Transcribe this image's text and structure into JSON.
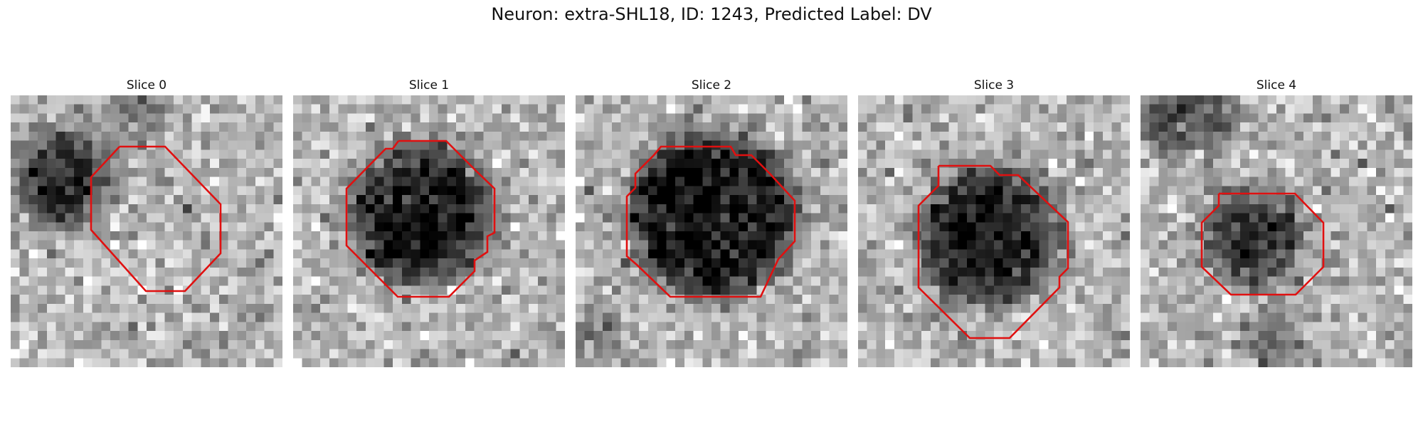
{
  "figure": {
    "title": "Neuron: extra-SHL18, ID: 1243, Predicted Label: DV"
  },
  "panels": [
    {
      "title": "Slice 0"
    },
    {
      "title": "Slice 1"
    },
    {
      "title": "Slice 2"
    },
    {
      "title": "Slice 3"
    },
    {
      "title": "Slice 4"
    }
  ],
  "colors": {
    "contour": "#e01010",
    "background": "#ffffff"
  }
}
